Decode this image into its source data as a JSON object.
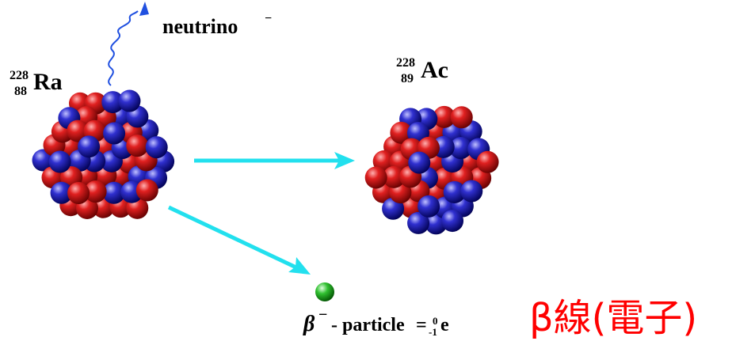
{
  "neutrino": {
    "label": "neutrino",
    "charge": "−"
  },
  "parent": {
    "mass": "228",
    "atomic": "88",
    "symbol": "Ra"
  },
  "daughter": {
    "mass": "228",
    "atomic": "89",
    "symbol": "Ac"
  },
  "beta": {
    "symbol": "β",
    "charge": "−",
    "label": "- particle",
    "equals": "=",
    "mass": "0",
    "atomic": "-1",
    "particle": "e"
  },
  "annotation": "β線(電子)"
}
